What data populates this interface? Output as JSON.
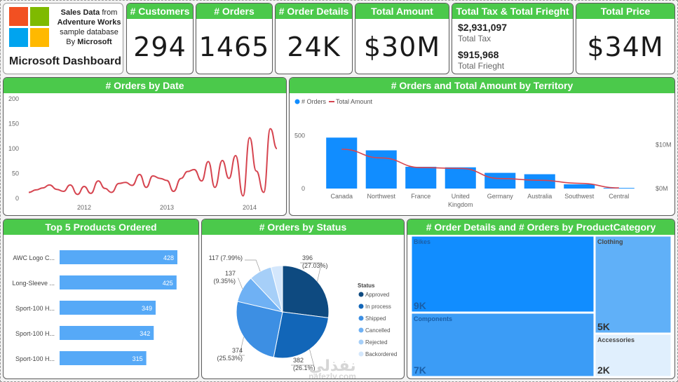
{
  "logo": {
    "line1": "Sales Data",
    "line1b": "from",
    "line2": "Adventure Works",
    "line3": "sample database",
    "line4a": "By",
    "line4b": "Microsoft",
    "title": "Microsoft Dashboard"
  },
  "kpis": {
    "customers": {
      "label": "# Customers",
      "value": "294"
    },
    "orders": {
      "label": "# Orders",
      "value": "1465"
    },
    "order_details": {
      "label": "# Order Details",
      "value": "24K"
    },
    "total_amount": {
      "label": "Total Amount",
      "value": "$30M"
    },
    "tax_freight": {
      "label": "Total Tax & Total Frieght",
      "tax_value": "$2,931,097",
      "tax_label": "Total Tax",
      "freight_value": "$915,968",
      "freight_label": "Total Frieght"
    },
    "total_price": {
      "label": "Total Price",
      "value": "$34M"
    }
  },
  "colors": {
    "header_green": "#4bc94b",
    "bar_blue": "#118dff",
    "line_red": "#d64550",
    "light_blue": "#56a9f7"
  },
  "watermark": {
    "arabic": "نفذلي",
    "latin": "nafezly.com"
  },
  "chart_data": [
    {
      "id": "orders_by_date",
      "title": "# Orders by Date",
      "type": "line",
      "ylim": [
        0,
        200
      ],
      "yticks": [
        0,
        50,
        100,
        150,
        200
      ],
      "x_ticks": [
        "2012",
        "2013",
        "2014"
      ],
      "x_tick_positions": [
        2012,
        2013,
        2014
      ],
      "x": [
        2011.33,
        2011.42,
        2011.5,
        2011.58,
        2011.67,
        2011.75,
        2011.83,
        2011.92,
        2012.0,
        2012.08,
        2012.17,
        2012.25,
        2012.33,
        2012.42,
        2012.5,
        2012.58,
        2012.67,
        2012.75,
        2012.83,
        2012.92,
        2013.0,
        2013.08,
        2013.17,
        2013.25,
        2013.33,
        2013.42,
        2013.5,
        2013.58,
        2013.67,
        2013.75,
        2013.83,
        2013.92,
        2014.0,
        2014.08,
        2014.17,
        2014.25,
        2014.33
      ],
      "series": [
        {
          "values": [
            12,
            17,
            21,
            27,
            18,
            14,
            27,
            8,
            24,
            10,
            35,
            20,
            12,
            30,
            32,
            26,
            48,
            22,
            45,
            40,
            36,
            14,
            40,
            54,
            58,
            35,
            74,
            22,
            76,
            40,
            86,
            5,
            122,
            55,
            12,
            140,
            100
          ]
        }
      ]
    },
    {
      "id": "orders_amount_territory",
      "title": "# Orders and Total Amount by Territory",
      "type": "bar",
      "legend": [
        "# Orders",
        "Total Amount"
      ],
      "categories": [
        "Canada",
        "Northwest",
        "France",
        "United Kingdom",
        "Germany",
        "Australia",
        "Southwest",
        "Central"
      ],
      "category_lines": [
        [
          "Canada"
        ],
        [
          "Northwest"
        ],
        [
          "France"
        ],
        [
          "United",
          "Kingdom"
        ],
        [
          "Germany"
        ],
        [
          "Australia"
        ],
        [
          "Southwest"
        ],
        [
          "Central"
        ]
      ],
      "left_ticks": [
        "0",
        "500"
      ],
      "right_ticks": [
        "$0M",
        "$10M"
      ],
      "series": [
        {
          "name": "# Orders",
          "values": [
            480,
            360,
            205,
            200,
            148,
            135,
            40,
            6
          ]
        },
        {
          "name": "Total Amount",
          "values": [
            9.0,
            7.0,
            4.8,
            4.6,
            2.3,
            1.9,
            1.2,
            0.15
          ]
        }
      ]
    },
    {
      "id": "top5_products",
      "title": "Top 5 Products Ordered",
      "type": "bar",
      "orientation": "horizontal",
      "categories": [
        "AWC Logo C...",
        "Long-Sleeve ...",
        "Sport-100 H...",
        "Sport-100 H...",
        "Sport-100 H..."
      ],
      "values": [
        428,
        425,
        349,
        342,
        315
      ],
      "xlim": [
        0,
        428
      ]
    },
    {
      "id": "orders_by_status",
      "title": "# Orders by Status",
      "type": "pie",
      "legend_title": "Status",
      "legend": [
        "Approved",
        "In process",
        "Shipped",
        "Cancelled",
        "Rejected",
        "Backordered"
      ],
      "colors": [
        "#0e4a80",
        "#1266b8",
        "#3d8fe3",
        "#6fb1f4",
        "#a6cff8",
        "#d4e7fc"
      ],
      "values": [
        396,
        382,
        374,
        137,
        117,
        59
      ],
      "labels": [
        [
          "396",
          "(27.03%)"
        ],
        [
          "382",
          "(26.1%)"
        ],
        [
          "374",
          "(25.53%)"
        ],
        [
          "137",
          "(9.35%)"
        ],
        [
          "117 (7.99%)"
        ],
        [
          ""
        ]
      ]
    },
    {
      "id": "details_orders_category",
      "title": "# Order Details and # Orders by ProductCategory",
      "type": "heatmap",
      "items": [
        {
          "name": "Bikes",
          "value_label": "9K",
          "color": "#118dff"
        },
        {
          "name": "Components",
          "value_label": "7K",
          "color": "#3b9cf6"
        },
        {
          "name": "Clothing",
          "value_label": "5K",
          "color": "#60b0f8"
        },
        {
          "name": "Accessories",
          "value_label": "2K",
          "color": "#e0effd"
        }
      ]
    }
  ]
}
